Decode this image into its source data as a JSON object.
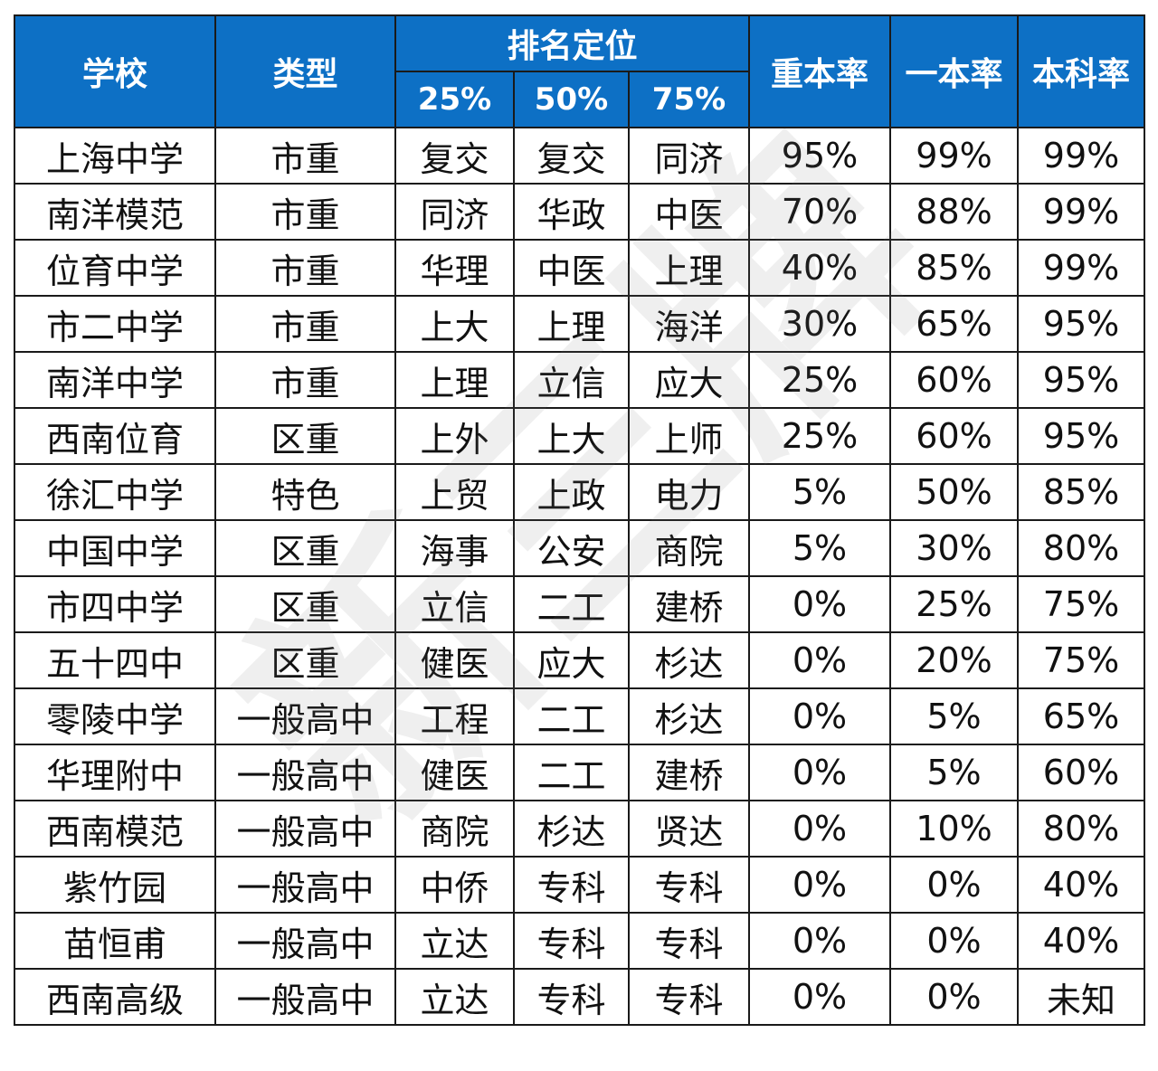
{
  "headers": {
    "school": "学校",
    "type": "类型",
    "ranking": "排名定位",
    "p25": "25%",
    "p50": "50%",
    "p75": "75%",
    "key_rate": "重本率",
    "first_rate": "一本率",
    "undergrad_rate": "本科率"
  },
  "watermark": "新三牌",
  "colors": {
    "header_bg": "#0d70c5",
    "header_text": "#ffffff"
  },
  "rows": [
    {
      "school": "上海中学",
      "type": "市重",
      "p25": "复交",
      "p50": "复交",
      "p75": "同济",
      "key_rate": "95%",
      "first_rate": "99%",
      "undergrad_rate": "99%"
    },
    {
      "school": "南洋模范",
      "type": "市重",
      "p25": "同济",
      "p50": "华政",
      "p75": "中医",
      "key_rate": "70%",
      "first_rate": "88%",
      "undergrad_rate": "99%"
    },
    {
      "school": "位育中学",
      "type": "市重",
      "p25": "华理",
      "p50": "中医",
      "p75": "上理",
      "key_rate": "40%",
      "first_rate": "85%",
      "undergrad_rate": "99%"
    },
    {
      "school": "市二中学",
      "type": "市重",
      "p25": "上大",
      "p50": "上理",
      "p75": "海洋",
      "key_rate": "30%",
      "first_rate": "65%",
      "undergrad_rate": "95%"
    },
    {
      "school": "南洋中学",
      "type": "市重",
      "p25": "上理",
      "p50": "立信",
      "p75": "应大",
      "key_rate": "25%",
      "first_rate": "60%",
      "undergrad_rate": "95%"
    },
    {
      "school": "西南位育",
      "type": "区重",
      "p25": "上外",
      "p50": "上大",
      "p75": "上师",
      "key_rate": "25%",
      "first_rate": "60%",
      "undergrad_rate": "95%"
    },
    {
      "school": "徐汇中学",
      "type": "特色",
      "p25": "上贸",
      "p50": "上政",
      "p75": "电力",
      "key_rate": "5%",
      "first_rate": "50%",
      "undergrad_rate": "85%"
    },
    {
      "school": "中国中学",
      "type": "区重",
      "p25": "海事",
      "p50": "公安",
      "p75": "商院",
      "key_rate": "5%",
      "first_rate": "30%",
      "undergrad_rate": "80%"
    },
    {
      "school": "市四中学",
      "type": "区重",
      "p25": "立信",
      "p50": "二工",
      "p75": "建桥",
      "key_rate": "0%",
      "first_rate": "25%",
      "undergrad_rate": "75%"
    },
    {
      "school": "五十四中",
      "type": "区重",
      "p25": "健医",
      "p50": "应大",
      "p75": "杉达",
      "key_rate": "0%",
      "first_rate": "20%",
      "undergrad_rate": "75%"
    },
    {
      "school": "零陵中学",
      "type": "一般高中",
      "p25": "工程",
      "p50": "二工",
      "p75": "杉达",
      "key_rate": "0%",
      "first_rate": "5%",
      "undergrad_rate": "65%"
    },
    {
      "school": "华理附中",
      "type": "一般高中",
      "p25": "健医",
      "p50": "二工",
      "p75": "建桥",
      "key_rate": "0%",
      "first_rate": "5%",
      "undergrad_rate": "60%"
    },
    {
      "school": "西南模范",
      "type": "一般高中",
      "p25": "商院",
      "p50": "杉达",
      "p75": "贤达",
      "key_rate": "0%",
      "first_rate": "10%",
      "undergrad_rate": "80%"
    },
    {
      "school": "紫竹园",
      "type": "一般高中",
      "p25": "中侨",
      "p50": "专科",
      "p75": "专科",
      "key_rate": "0%",
      "first_rate": "0%",
      "undergrad_rate": "40%"
    },
    {
      "school": "苗恒甫",
      "type": "一般高中",
      "p25": "立达",
      "p50": "专科",
      "p75": "专科",
      "key_rate": "0%",
      "first_rate": "0%",
      "undergrad_rate": "40%"
    },
    {
      "school": "西南高级",
      "type": "一般高中",
      "p25": "立达",
      "p50": "专科",
      "p75": "专科",
      "key_rate": "0%",
      "first_rate": "0%",
      "undergrad_rate": "未知"
    }
  ]
}
